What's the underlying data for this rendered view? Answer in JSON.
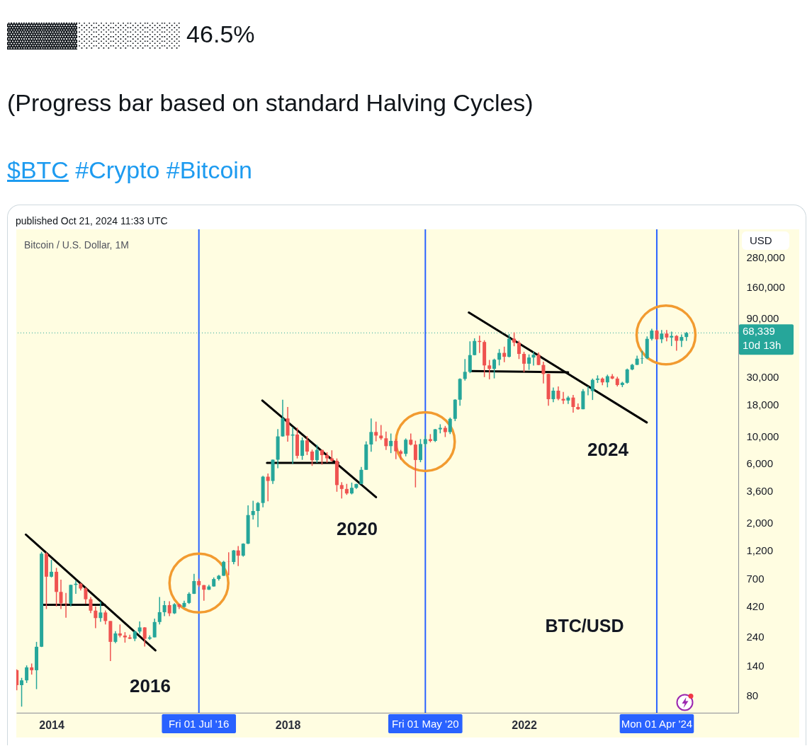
{
  "chart_data": {
    "type": "candlestick",
    "title": "Bitcoin / U.S. Dollar, 1M",
    "ylabel": "USD",
    "annotations": [
      "▓▓▓▓░░░░░░ 46.5%",
      "(Progress bar based on standard Halving Cycles)",
      "$BTC #Crypto #Bitcoin",
      "published Oct 21, 2024 11:33 UTC",
      "10d 13h",
      "2016",
      "2020",
      "2024",
      "BTC/USD"
    ],
    "x": [
      "2013-06",
      "2013-07",
      "2013-08",
      "2013-09",
      "2013-10",
      "2013-11",
      "2013-12",
      "2014-01",
      "2014-02",
      "2014-03",
      "2014-04",
      "2014-05",
      "2014-06",
      "2014-07",
      "2014-08",
      "2014-09",
      "2014-10",
      "2014-11",
      "2014-12",
      "2015-01",
      "2015-02",
      "2015-03",
      "2015-04",
      "2015-05",
      "2015-06",
      "2015-07",
      "2015-08",
      "2015-09",
      "2015-10",
      "2015-11",
      "2015-12",
      "2016-01",
      "2016-02",
      "2016-03",
      "2016-04",
      "2016-05",
      "2016-06",
      "2016-07",
      "2016-08",
      "2016-09",
      "2016-10",
      "2016-11",
      "2016-12",
      "2017-01",
      "2017-02",
      "2017-03",
      "2017-04",
      "2017-05",
      "2017-06",
      "2017-07",
      "2017-08",
      "2017-09",
      "2017-10",
      "2017-11",
      "2017-12",
      "2018-01",
      "2018-02",
      "2018-03",
      "2018-04",
      "2018-05",
      "2018-06",
      "2018-07",
      "2018-08",
      "2018-09",
      "2018-10",
      "2018-11",
      "2018-12",
      "2019-01",
      "2019-02",
      "2019-03",
      "2019-04",
      "2019-05",
      "2019-06",
      "2019-07",
      "2019-08",
      "2019-09",
      "2019-10",
      "2019-11",
      "2019-12",
      "2020-01",
      "2020-02",
      "2020-03",
      "2020-04",
      "2020-05",
      "2020-06",
      "2020-07",
      "2020-08",
      "2020-09",
      "2020-10",
      "2020-11",
      "2020-12",
      "2021-01",
      "2021-02",
      "2021-03",
      "2021-04",
      "2021-05",
      "2021-06",
      "2021-07",
      "2021-08",
      "2021-09",
      "2021-10",
      "2021-11",
      "2021-12",
      "2022-01",
      "2022-02",
      "2022-03",
      "2022-04",
      "2022-05",
      "2022-06",
      "2022-07",
      "2022-08",
      "2022-09",
      "2022-10",
      "2022-11",
      "2022-12",
      "2023-01",
      "2023-02",
      "2023-03",
      "2023-04",
      "2023-05",
      "2023-06",
      "2023-07",
      "2023-08",
      "2023-09",
      "2023-10",
      "2023-11",
      "2023-12",
      "2024-01",
      "2024-02",
      "2024-03",
      "2024-04",
      "2024-05",
      "2024-06",
      "2024-07",
      "2024-08",
      "2024-09",
      "2024-10"
    ],
    "ohlc": [
      [
        128,
        130,
        88,
        97
      ],
      [
        97,
        111,
        65,
        106
      ],
      [
        106,
        140,
        101,
        135
      ],
      [
        135,
        145,
        118,
        128
      ],
      [
        128,
        217,
        90,
        198
      ],
      [
        198,
        1160,
        197,
        1120
      ],
      [
        1120,
        1150,
        400,
        730
      ],
      [
        730,
        1000,
        720,
        800
      ],
      [
        800,
        860,
        420,
        550
      ],
      [
        550,
        690,
        400,
        445
      ],
      [
        445,
        540,
        340,
        443
      ],
      [
        443,
        630,
        420,
        627
      ],
      [
        627,
        680,
        530,
        640
      ],
      [
        640,
        650,
        565,
        586
      ],
      [
        586,
        600,
        440,
        480
      ],
      [
        480,
        500,
        370,
        388
      ],
      [
        388,
        420,
        280,
        338
      ],
      [
        338,
        460,
        315,
        375
      ],
      [
        375,
        390,
        300,
        320
      ],
      [
        320,
        320,
        152,
        217
      ],
      [
        217,
        265,
        212,
        254
      ],
      [
        254,
        300,
        236,
        244
      ],
      [
        244,
        260,
        214,
        236
      ],
      [
        236,
        248,
        228,
        230
      ],
      [
        230,
        268,
        220,
        263
      ],
      [
        263,
        317,
        253,
        284
      ],
      [
        284,
        286,
        199,
        230
      ],
      [
        230,
        245,
        225,
        236
      ],
      [
        236,
        335,
        236,
        314
      ],
      [
        314,
        500,
        300,
        377
      ],
      [
        377,
        465,
        350,
        430
      ],
      [
        430,
        462,
        350,
        369
      ],
      [
        369,
        446,
        365,
        437
      ],
      [
        437,
        440,
        400,
        416
      ],
      [
        416,
        467,
        412,
        448
      ],
      [
        448,
        547,
        440,
        531
      ],
      [
        531,
        770,
        529,
        673
      ],
      [
        673,
        704,
        604,
        624
      ],
      [
        624,
        625,
        467,
        573
      ],
      [
        573,
        627,
        570,
        609
      ],
      [
        609,
        720,
        606,
        699
      ],
      [
        699,
        756,
        680,
        743
      ],
      [
        743,
        980,
        740,
        963
      ],
      [
        963,
        1150,
        750,
        960
      ],
      [
        960,
        1200,
        920,
        1190
      ],
      [
        1190,
        1290,
        890,
        1080
      ],
      [
        1080,
        1360,
        1060,
        1350
      ],
      [
        1350,
        2760,
        1340,
        2300
      ],
      [
        2300,
        3000,
        2120,
        2480
      ],
      [
        2480,
        2930,
        1840,
        2880
      ],
      [
        2880,
        4770,
        2660,
        4700
      ],
      [
        4700,
        4980,
        2970,
        4340
      ],
      [
        4340,
        6470,
        4110,
        6450
      ],
      [
        6450,
        11400,
        5500,
        9950
      ],
      [
        9950,
        19700,
        9900,
        13900
      ],
      [
        13900,
        17200,
        9030,
        10100
      ],
      [
        10100,
        11800,
        5950,
        10300
      ],
      [
        10300,
        11700,
        6600,
        6930
      ],
      [
        6930,
        9760,
        6430,
        9240
      ],
      [
        9240,
        10000,
        7030,
        7500
      ],
      [
        7500,
        7770,
        5750,
        6390
      ],
      [
        6390,
        8500,
        6080,
        7730
      ],
      [
        7730,
        7760,
        5880,
        7020
      ],
      [
        7020,
        7410,
        6100,
        6620
      ],
      [
        6620,
        7680,
        6200,
        6320
      ],
      [
        6320,
        6600,
        3550,
        4020
      ],
      [
        4020,
        4240,
        3130,
        3740
      ],
      [
        3740,
        4110,
        3350,
        3440
      ],
      [
        3440,
        4210,
        3380,
        3820
      ],
      [
        3820,
        4120,
        3740,
        4100
      ],
      [
        4100,
        5630,
        4080,
        5340
      ],
      [
        5340,
        9070,
        5330,
        8560
      ],
      [
        8560,
        13900,
        7470,
        10800
      ],
      [
        10800,
        13100,
        9080,
        10100
      ],
      [
        10100,
        12300,
        9320,
        9600
      ],
      [
        9600,
        10900,
        7730,
        8300
      ],
      [
        8300,
        10500,
        7290,
        9150
      ],
      [
        9150,
        9510,
        6520,
        7540
      ],
      [
        7540,
        7740,
        6430,
        7190
      ],
      [
        7190,
        9580,
        6860,
        9350
      ],
      [
        9350,
        10500,
        8420,
        8540
      ],
      [
        8540,
        9190,
        3850,
        6410
      ],
      [
        6410,
        9470,
        6150,
        8630
      ],
      [
        8630,
        10080,
        8120,
        9450
      ],
      [
        9450,
        10380,
        8900,
        9140
      ],
      [
        9140,
        11450,
        8970,
        11350
      ],
      [
        11350,
        12470,
        10530,
        11660
      ],
      [
        11660,
        12080,
        9830,
        10780
      ],
      [
        10780,
        14100,
        10380,
        13800
      ],
      [
        13800,
        19900,
        13230,
        19700
      ],
      [
        19700,
        29300,
        17600,
        29000
      ],
      [
        29000,
        42000,
        28100,
        33100
      ],
      [
        33100,
        58400,
        32300,
        45200
      ],
      [
        45200,
        61800,
        45000,
        58800
      ],
      [
        58800,
        64900,
        47000,
        57700
      ],
      [
        57700,
        59600,
        30000,
        37300
      ],
      [
        37300,
        41300,
        28800,
        35000
      ],
      [
        35000,
        42300,
        29300,
        41500
      ],
      [
        41500,
        50500,
        37300,
        47100
      ],
      [
        47100,
        52900,
        39600,
        43800
      ],
      [
        43800,
        67000,
        43300,
        61300
      ],
      [
        61300,
        69000,
        53300,
        57000
      ],
      [
        57000,
        59100,
        42000,
        46200
      ],
      [
        46200,
        48000,
        32900,
        38500
      ],
      [
        38500,
        45800,
        34300,
        43200
      ],
      [
        43200,
        48200,
        37200,
        45500
      ],
      [
        45500,
        47400,
        37500,
        37600
      ],
      [
        37600,
        40000,
        26700,
        31800
      ],
      [
        31800,
        32000,
        17600,
        19900
      ],
      [
        19900,
        24700,
        18800,
        23300
      ],
      [
        23300,
        25200,
        19500,
        20000
      ],
      [
        20000,
        22800,
        18200,
        19400
      ],
      [
        19400,
        21100,
        18200,
        20500
      ],
      [
        20500,
        21500,
        15500,
        17200
      ],
      [
        17200,
        18400,
        16300,
        16500
      ],
      [
        16500,
        24000,
        16500,
        23100
      ],
      [
        23100,
        25300,
        21400,
        23150
      ],
      [
        23150,
        29200,
        19600,
        28500
      ],
      [
        28500,
        31000,
        26900,
        29200
      ],
      [
        29200,
        29800,
        25800,
        27200
      ],
      [
        27200,
        31400,
        24800,
        30500
      ],
      [
        30500,
        31800,
        28900,
        29200
      ],
      [
        29200,
        30200,
        25200,
        25900
      ],
      [
        25900,
        27500,
        24900,
        27000
      ],
      [
        27000,
        35200,
        26600,
        34600
      ],
      [
        34600,
        38400,
        34100,
        37700
      ],
      [
        37700,
        44700,
        37600,
        42300
      ],
      [
        42300,
        49000,
        38500,
        42600
      ],
      [
        42600,
        64000,
        41900,
        61200
      ],
      [
        61200,
        73800,
        59300,
        71300
      ],
      [
        71300,
        72700,
        59600,
        60700
      ],
      [
        60700,
        72000,
        56600,
        67500
      ],
      [
        67500,
        72000,
        58400,
        62700
      ],
      [
        62700,
        70000,
        53500,
        64600
      ],
      [
        64600,
        65600,
        49000,
        59000
      ],
      [
        59000,
        66500,
        52600,
        63300
      ],
      [
        63300,
        69500,
        58900,
        68339
      ]
    ],
    "colors": [
      "#ef5350",
      "#26a69a",
      "#26a69a",
      "#ef5350",
      "#26a69a",
      "#26a69a",
      "#ef5350",
      "#26a69a",
      "#ef5350",
      "#ef5350",
      "#ef5350",
      "#26a69a",
      "#26a69a",
      "#ef5350",
      "#ef5350",
      "#ef5350",
      "#ef5350",
      "#26a69a",
      "#ef5350",
      "#ef5350",
      "#26a69a",
      "#ef5350",
      "#ef5350",
      "#ef5350",
      "#26a69a",
      "#26a69a",
      "#ef5350",
      "#26a69a",
      "#26a69a",
      "#26a69a",
      "#26a69a",
      "#ef5350",
      "#26a69a",
      "#ef5350",
      "#26a69a",
      "#26a69a",
      "#26a69a",
      "#ef5350",
      "#ef5350",
      "#26a69a",
      "#26a69a",
      "#26a69a",
      "#26a69a",
      "#ef5350",
      "#26a69a",
      "#ef5350",
      "#26a69a",
      "#26a69a",
      "#26a69a",
      "#26a69a",
      "#26a69a",
      "#ef5350",
      "#26a69a",
      "#26a69a",
      "#26a69a",
      "#ef5350",
      "#26a69a",
      "#ef5350",
      "#26a69a",
      "#ef5350",
      "#ef5350",
      "#26a69a",
      "#ef5350",
      "#ef5350",
      "#ef5350",
      "#ef5350",
      "#ef5350",
      "#ef5350",
      "#26a69a",
      "#26a69a",
      "#26a69a",
      "#26a69a",
      "#26a69a",
      "#ef5350",
      "#ef5350",
      "#ef5350",
      "#26a69a",
      "#ef5350",
      "#ef5350",
      "#26a69a",
      "#ef5350",
      "#ef5350",
      "#26a69a",
      "#26a69a",
      "#ef5350",
      "#26a69a",
      "#26a69a",
      "#ef5350",
      "#26a69a",
      "#26a69a",
      "#26a69a",
      "#26a69a",
      "#26a69a",
      "#26a69a",
      "#ef5350",
      "#ef5350",
      "#ef5350",
      "#26a69a",
      "#26a69a",
      "#ef5350",
      "#26a69a",
      "#ef5350",
      "#ef5350",
      "#ef5350",
      "#26a69a",
      "#26a69a",
      "#ef5350",
      "#ef5350",
      "#ef5350",
      "#26a69a",
      "#ef5350",
      "#ef5350",
      "#26a69a",
      "#ef5350",
      "#ef5350",
      "#26a69a",
      "#26a69a",
      "#26a69a",
      "#26a69a",
      "#ef5350",
      "#26a69a",
      "#ef5350",
      "#ef5350",
      "#26a69a",
      "#26a69a",
      "#26a69a",
      "#26a69a",
      "#26a69a",
      "#26a69a",
      "#26a69a",
      "#ef5350",
      "#26a69a",
      "#ef5350",
      "#26a69a",
      "#ef5350",
      "#26a69a",
      "#26a69a"
    ],
    "series": [
      {
        "type": "line",
        "x": [
          "2013-07-27",
          "2015-10-06"
        ],
        "values": [
          1600,
          185
        ],
        "color": "#000000"
      },
      {
        "type": "line",
        "x": [
          "2013-11-10",
          "2014-11-27"
        ],
        "values": [
          433,
          433
        ],
        "color": "#000000"
      },
      {
        "type": "line",
        "x": [
          "2017-07-28",
          "2019-07-01"
        ],
        "values": [
          19400,
          3210
        ],
        "color": "#000000"
      },
      {
        "type": "line",
        "x": [
          "2017-08-26",
          "2018-11-10"
        ],
        "values": [
          6070,
          6070
        ],
        "color": "#000000"
      },
      {
        "type": "line",
        "x": [
          "2021-01-25",
          "2024-01-30"
        ],
        "values": [
          99800,
          12900
        ],
        "color": "#000000"
      },
      {
        "type": "line",
        "x": [
          "2021-02-04",
          "2022-10-01"
        ],
        "values": [
          33600,
          32800
        ],
        "color": "#000000"
      }
    ],
    "xlim": [
      "2013-05-29",
      "2025-08-18"
    ],
    "xticks": [
      "2014",
      "2018",
      "2022"
    ],
    "ylim": [
      58,
      470000
    ],
    "log": "y",
    "yticks": [
      80,
      140,
      240,
      420,
      700,
      {
        "value": 1200,
        "label": "1,200"
      },
      {
        "value": 2000,
        "label": "2,000"
      },
      {
        "value": 3600,
        "label": "3,600"
      },
      {
        "value": 6000,
        "label": "6,000"
      },
      {
        "value": 10000,
        "label": "10,000"
      },
      {
        "value": 18000,
        "label": "18,000"
      },
      {
        "value": 30000,
        "label": "30,000"
      },
      {
        "value": 90000,
        "label": "90,000"
      },
      {
        "value": 160000,
        "label": "160,000"
      },
      {
        "value": 280000,
        "label": "280,000"
      }
    ],
    "ref_lines": [
      {
        "axis": "x",
        "value": "2016-07-01",
        "label": "Fri 01 Jul '16",
        "color": "#2962ff"
      },
      {
        "axis": "x",
        "value": "2020-05-01",
        "label": "Fri 01 May '20",
        "color": "#2962ff"
      },
      {
        "axis": "x",
        "value": "2024-04-01",
        "label": "Mon 01 Apr '24",
        "color": "#2962ff"
      },
      {
        "axis": "y",
        "value": 68339,
        "label": "68,339",
        "color": "#26a69a",
        "line_style": "dotted"
      }
    ]
  }
}
